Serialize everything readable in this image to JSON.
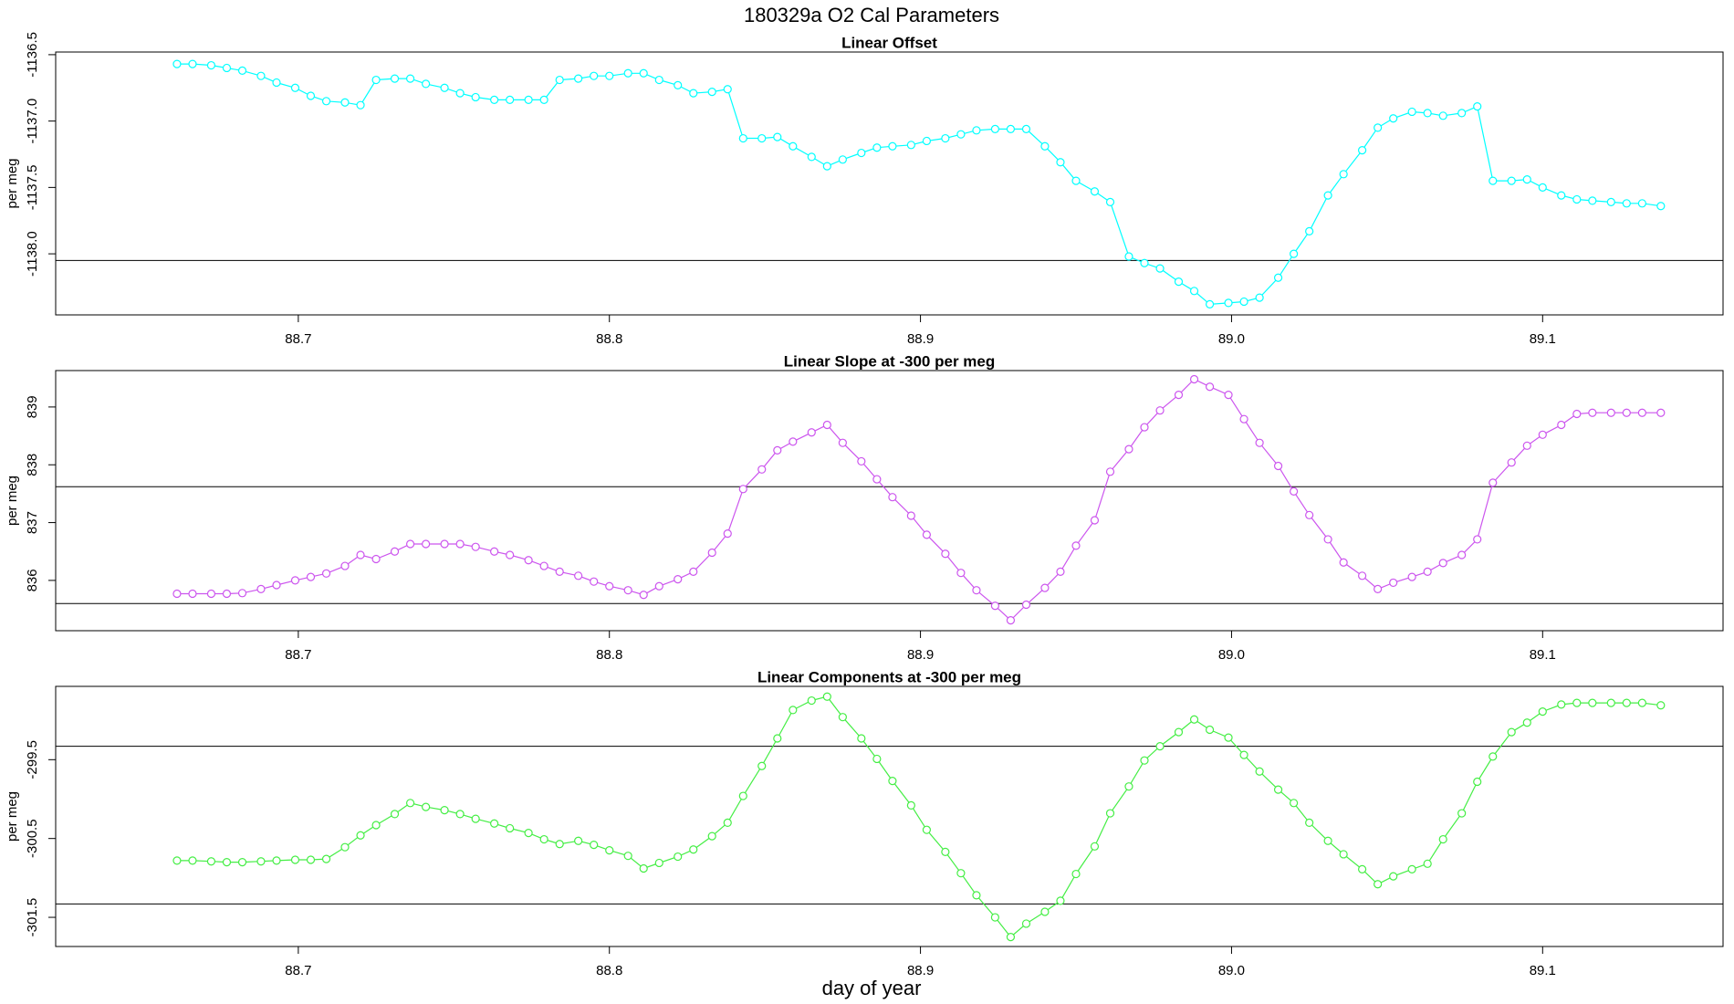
{
  "title": "180329a   O2 Cal Parameters",
  "x_label": "day of year",
  "chart_data": [
    {
      "type": "line",
      "title": "Linear Offset",
      "y_label": "per meg",
      "color": "#00ffff",
      "x": [
        88.661,
        88.666,
        88.672,
        88.677,
        88.682,
        88.688,
        88.693,
        88.699,
        88.704,
        88.709,
        88.715,
        88.72,
        88.725,
        88.731,
        88.736,
        88.741,
        88.747,
        88.752,
        88.757,
        88.763,
        88.768,
        88.774,
        88.779,
        88.784,
        88.79,
        88.795,
        88.8,
        88.806,
        88.811,
        88.816,
        88.822,
        88.827,
        88.833,
        88.838,
        88.843,
        88.849,
        88.854,
        88.859,
        88.865,
        88.87,
        88.875,
        88.881,
        88.886,
        88.891,
        88.897,
        88.902,
        88.908,
        88.913,
        88.918,
        88.924,
        88.929,
        88.934,
        88.94,
        88.945,
        88.95,
        88.956,
        88.961,
        88.967,
        88.972,
        88.977,
        88.983,
        88.988,
        88.993,
        88.999,
        89.004,
        89.009,
        89.015,
        89.02,
        89.025,
        89.031,
        89.036,
        89.042,
        89.047,
        89.052,
        89.058,
        89.063,
        89.068,
        89.074,
        89.079,
        89.084,
        89.09,
        89.095,
        89.1,
        89.106,
        89.111,
        89.116,
        89.122,
        89.127,
        89.132,
        89.138
      ],
      "values": [
        -1136.57,
        -1136.57,
        -1136.58,
        -1136.6,
        -1136.62,
        -1136.66,
        -1136.71,
        -1136.75,
        -1136.81,
        -1136.85,
        -1136.86,
        -1136.88,
        -1136.69,
        -1136.68,
        -1136.68,
        -1136.72,
        -1136.75,
        -1136.79,
        -1136.82,
        -1136.84,
        -1136.84,
        -1136.84,
        -1136.84,
        -1136.69,
        -1136.68,
        -1136.66,
        -1136.66,
        -1136.64,
        -1136.64,
        -1136.69,
        -1136.73,
        -1136.79,
        -1136.78,
        -1136.76,
        -1137.13,
        -1137.13,
        -1137.12,
        -1137.19,
        -1137.27,
        -1137.34,
        -1137.29,
        -1137.24,
        -1137.2,
        -1137.19,
        -1137.18,
        -1137.15,
        -1137.13,
        -1137.1,
        -1137.07,
        -1137.06,
        -1137.06,
        -1137.06,
        -1137.19,
        -1137.31,
        -1137.45,
        -1137.53,
        -1137.61,
        -1138.02,
        -1138.07,
        -1138.11,
        -1138.21,
        -1138.28,
        -1138.38,
        -1138.37,
        -1138.36,
        -1138.33,
        -1138.18,
        -1138.0,
        -1137.83,
        -1137.56,
        -1137.4,
        -1137.22,
        -1137.05,
        -1136.98,
        -1136.93,
        -1136.94,
        -1136.96,
        -1136.94,
        -1136.89,
        -1137.45,
        -1137.45,
        -1137.44,
        -1137.5,
        -1137.56,
        -1137.59,
        -1137.6,
        -1137.61,
        -1137.62,
        -1137.62,
        -1137.64
      ],
      "xlim": [
        88.622,
        89.158
      ],
      "xticks": [
        88.7,
        88.8,
        88.9,
        {
          "value": 89,
          "label": "89.0"
        },
        89.1
      ],
      "ylim": [
        -1138.46,
        -1136.48
      ],
      "yticks": [
        -1136.5,
        {
          "value": -1137,
          "label": "-1137.0"
        },
        -1137.5,
        {
          "value": -1138,
          "label": "-1138.0"
        }
      ],
      "hlines": [
        -1138.05
      ]
    },
    {
      "type": "line",
      "title": "Linear Slope at -300 per meg",
      "y_label": "per meg",
      "color": "#cc55ee",
      "x": [
        88.661,
        88.666,
        88.672,
        88.677,
        88.682,
        88.688,
        88.693,
        88.699,
        88.704,
        88.709,
        88.715,
        88.72,
        88.725,
        88.731,
        88.736,
        88.741,
        88.747,
        88.752,
        88.757,
        88.763,
        88.768,
        88.774,
        88.779,
        88.784,
        88.79,
        88.795,
        88.8,
        88.806,
        88.811,
        88.816,
        88.822,
        88.827,
        88.833,
        88.838,
        88.843,
        88.849,
        88.854,
        88.859,
        88.865,
        88.87,
        88.875,
        88.881,
        88.886,
        88.891,
        88.897,
        88.902,
        88.908,
        88.913,
        88.918,
        88.924,
        88.929,
        88.934,
        88.94,
        88.945,
        88.95,
        88.956,
        88.961,
        88.967,
        88.972,
        88.977,
        88.983,
        88.988,
        88.993,
        88.999,
        89.004,
        89.009,
        89.015,
        89.02,
        89.025,
        89.031,
        89.036,
        89.042,
        89.047,
        89.052,
        89.058,
        89.063,
        89.068,
        89.074,
        89.079,
        89.084,
        89.09,
        89.095,
        89.1,
        89.106,
        89.111,
        89.116,
        89.122,
        89.127,
        89.132,
        89.138
      ],
      "values": [
        835.77,
        835.77,
        835.77,
        835.77,
        835.78,
        835.85,
        835.92,
        836.0,
        836.06,
        836.12,
        836.25,
        836.44,
        836.37,
        836.5,
        836.63,
        836.63,
        836.63,
        836.63,
        836.58,
        836.5,
        836.44,
        836.35,
        836.25,
        836.15,
        836.08,
        835.98,
        835.9,
        835.83,
        835.75,
        835.9,
        836.02,
        836.15,
        836.48,
        836.81,
        837.58,
        837.92,
        838.25,
        838.4,
        838.56,
        838.69,
        838.38,
        838.06,
        837.75,
        837.44,
        837.12,
        836.79,
        836.46,
        836.13,
        835.83,
        835.56,
        835.31,
        835.58,
        835.87,
        836.15,
        836.6,
        837.04,
        837.88,
        838.27,
        838.65,
        838.94,
        839.21,
        839.48,
        839.35,
        839.21,
        838.79,
        838.38,
        837.98,
        837.54,
        837.13,
        836.71,
        836.31,
        836.08,
        835.85,
        835.96,
        836.06,
        836.15,
        836.3,
        836.44,
        836.71,
        837.69,
        838.04,
        838.33,
        838.52,
        838.69,
        838.88,
        838.9,
        838.9,
        838.9,
        838.9,
        838.9
      ],
      "xlim": [
        88.622,
        89.158
      ],
      "xticks": [
        88.7,
        88.8,
        88.9,
        {
          "value": 89,
          "label": "89.0"
        },
        89.1
      ],
      "ylim": [
        835.13,
        839.63
      ],
      "yticks": [
        836,
        837,
        838,
        839
      ],
      "hlines": [
        837.62,
        835.6
      ]
    },
    {
      "type": "line",
      "title": "Linear Components at -300 per meg",
      "y_label": "per meg",
      "color": "#44ee44",
      "x": [
        88.661,
        88.666,
        88.672,
        88.677,
        88.682,
        88.688,
        88.693,
        88.699,
        88.704,
        88.709,
        88.715,
        88.72,
        88.725,
        88.731,
        88.736,
        88.741,
        88.747,
        88.752,
        88.757,
        88.763,
        88.768,
        88.774,
        88.779,
        88.784,
        88.79,
        88.795,
        88.8,
        88.806,
        88.811,
        88.816,
        88.822,
        88.827,
        88.833,
        88.838,
        88.843,
        88.849,
        88.854,
        88.859,
        88.865,
        88.87,
        88.875,
        88.881,
        88.886,
        88.891,
        88.897,
        88.902,
        88.908,
        88.913,
        88.918,
        88.924,
        88.929,
        88.934,
        88.94,
        88.945,
        88.95,
        88.956,
        88.961,
        88.967,
        88.972,
        88.977,
        88.983,
        88.988,
        88.993,
        88.999,
        89.004,
        89.009,
        89.015,
        89.02,
        89.025,
        89.031,
        89.036,
        89.042,
        89.047,
        89.052,
        89.058,
        89.063,
        89.068,
        89.074,
        89.079,
        89.084,
        89.09,
        89.095,
        89.1,
        89.106,
        89.111,
        89.116,
        89.122,
        89.127,
        89.132,
        89.138
      ],
      "values": [
        -300.78,
        -300.78,
        -300.79,
        -300.8,
        -300.8,
        -300.79,
        -300.78,
        -300.77,
        -300.77,
        -300.76,
        -300.61,
        -300.46,
        -300.33,
        -300.19,
        -300.05,
        -300.1,
        -300.14,
        -300.19,
        -300.25,
        -300.31,
        -300.37,
        -300.43,
        -300.51,
        -300.57,
        -300.53,
        -300.58,
        -300.65,
        -300.72,
        -300.88,
        -300.81,
        -300.73,
        -300.64,
        -300.47,
        -300.3,
        -299.96,
        -299.58,
        -299.23,
        -298.87,
        -298.75,
        -298.7,
        -298.96,
        -299.23,
        -299.49,
        -299.77,
        -300.08,
        -300.39,
        -300.67,
        -300.94,
        -301.22,
        -301.5,
        -301.75,
        -301.58,
        -301.43,
        -301.29,
        -300.95,
        -300.6,
        -300.18,
        -299.84,
        -299.51,
        -299.33,
        -299.15,
        -298.99,
        -299.12,
        -299.22,
        -299.44,
        -299.65,
        -299.88,
        -300.05,
        -300.3,
        -300.53,
        -300.7,
        -300.89,
        -301.08,
        -300.98,
        -300.89,
        -300.82,
        -300.51,
        -300.18,
        -299.78,
        -299.46,
        -299.15,
        -299.03,
        -298.89,
        -298.8,
        -298.78,
        -298.78,
        -298.78,
        -298.78,
        -298.78,
        -298.81
      ],
      "xlim": [
        88.622,
        89.158
      ],
      "xticks": [
        88.7,
        88.8,
        88.9,
        {
          "value": 89,
          "label": "89.0"
        },
        89.1
      ],
      "ylim": [
        -301.87,
        -298.57
      ],
      "yticks": [
        -299.5,
        -300.5,
        -301.5
      ],
      "hlines": [
        -299.33,
        -301.33
      ]
    }
  ]
}
